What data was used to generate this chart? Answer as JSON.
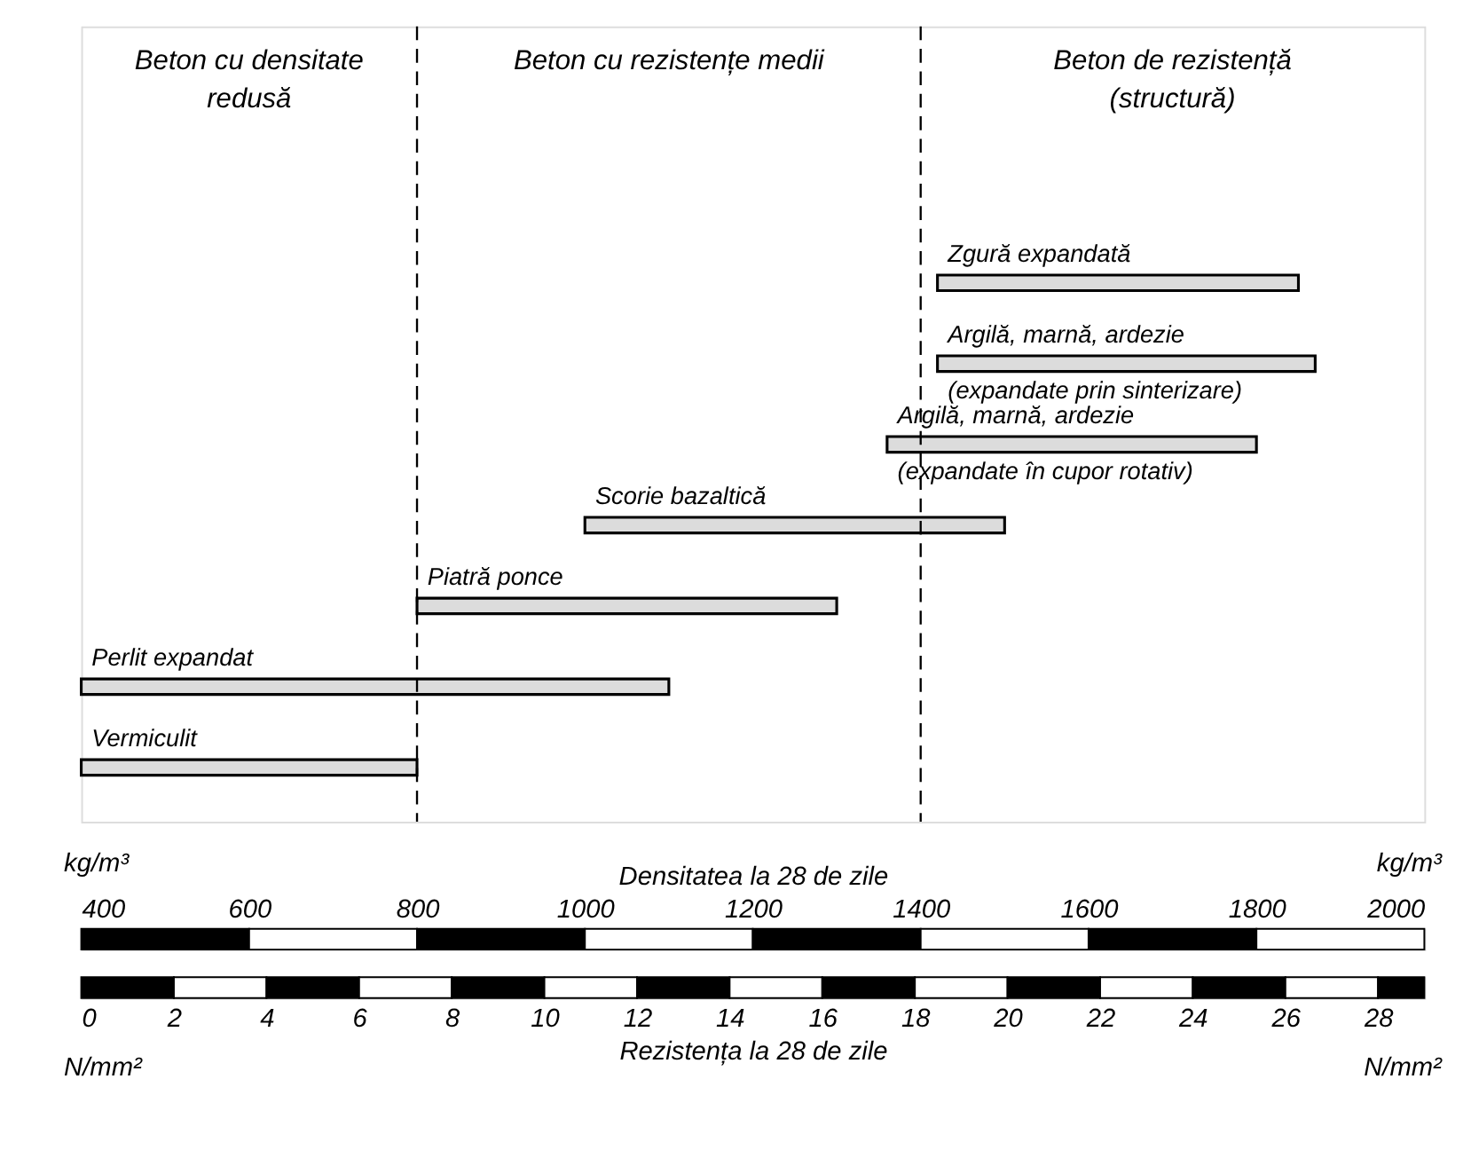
{
  "chart_data": {
    "type": "bar",
    "orientation": "horizontal",
    "categories": [
      "Zgură expandată",
      "Argilă, marnă, ardezie\n(expandate prin sinterizare)",
      "Argilă, marnă, ardezie\n(expandate în cupor rotativ)",
      "Scorie bazaltică",
      "Piatră ponce",
      "Perlit expandat",
      "Vermiculit"
    ],
    "base": [
      1420,
      1420,
      1360,
      1000,
      800,
      400,
      400
    ],
    "values": [
      430,
      450,
      440,
      500,
      500,
      700,
      400
    ],
    "color": "#dcdcdc",
    "xlim": [
      400,
      2000
    ],
    "xticks": [
      400,
      600,
      800,
      1000,
      1200,
      1400,
      1600,
      1800,
      2000
    ],
    "xlabel": "Densitatea la 28 de zile",
    "x2lim": [
      0,
      29
    ],
    "x2ticks": [
      0,
      2,
      4,
      6,
      8,
      10,
      12,
      14,
      16,
      18,
      20,
      22,
      24,
      26,
      28
    ],
    "x2label": "Rezistența la 28 de zile",
    "ref_lines": [
      {
        "axis": "x",
        "value": 800,
        "line_style": "dashed",
        "color": "#000000"
      },
      {
        "axis": "x",
        "value": 1400,
        "line_style": "dashed",
        "color": "#000000"
      }
    ],
    "annotations": [
      "Beton cu densitate\nredusă",
      "Beton cu rezistențe medii",
      "Beton de rezistență\n(structură)",
      "kg/m³",
      "kg/m³",
      "N/mm²",
      "N/mm²"
    ],
    "grid": false
  }
}
